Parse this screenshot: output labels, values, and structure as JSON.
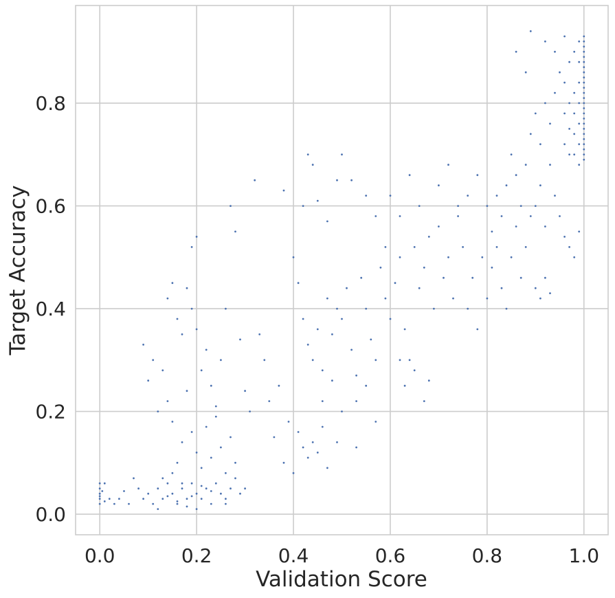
{
  "chart_data": {
    "type": "scatter",
    "style": "seaborn whitegrid",
    "xlabel": "Validation Score",
    "ylabel": "Target Accuracy",
    "xlim": [
      -0.05,
      1.05
    ],
    "ylim": [
      -0.04,
      0.99
    ],
    "xticks": [
      "0.0",
      "0.2",
      "0.4",
      "0.6",
      "0.8",
      "1.0"
    ],
    "yticks": [
      "0.0",
      "0.2",
      "0.4",
      "0.6",
      "0.8"
    ],
    "grid": true,
    "colors": {
      "marker": "#4c72b0",
      "grid": "#cccccc",
      "spine": "#cccccc"
    },
    "series": [
      {
        "points": [
          [
            0.0,
            0.06
          ],
          [
            0.0,
            0.05
          ],
          [
            0.0,
            0.04
          ],
          [
            0.0,
            0.03
          ],
          [
            0.0,
            0.02
          ],
          [
            0.0,
            0.035
          ],
          [
            0.005,
            0.045
          ],
          [
            0.01,
            0.06
          ],
          [
            0.01,
            0.025
          ],
          [
            0.02,
            0.03
          ],
          [
            0.03,
            0.02
          ],
          [
            0.04,
            0.03
          ],
          [
            0.05,
            0.045
          ],
          [
            0.06,
            0.02
          ],
          [
            0.07,
            0.07
          ],
          [
            0.08,
            0.05
          ],
          [
            0.09,
            0.03
          ],
          [
            0.1,
            0.04
          ],
          [
            0.11,
            0.02
          ],
          [
            0.12,
            0.05
          ],
          [
            0.13,
            0.03
          ],
          [
            0.14,
            0.06
          ],
          [
            0.15,
            0.04
          ],
          [
            0.16,
            0.02
          ],
          [
            0.17,
            0.05
          ],
          [
            0.18,
            0.03
          ],
          [
            0.19,
            0.06
          ],
          [
            0.2,
            0.04
          ],
          [
            0.21,
            0.03
          ],
          [
            0.22,
            0.05
          ],
          [
            0.23,
            0.02
          ],
          [
            0.24,
            0.06
          ],
          [
            0.25,
            0.04
          ],
          [
            0.26,
            0.03
          ],
          [
            0.27,
            0.05
          ],
          [
            0.28,
            0.07
          ],
          [
            0.15,
            0.08
          ],
          [
            0.17,
            0.06
          ],
          [
            0.19,
            0.035
          ],
          [
            0.21,
            0.055
          ],
          [
            0.23,
            0.045
          ],
          [
            0.16,
            0.025
          ],
          [
            0.18,
            0.015
          ],
          [
            0.2,
            0.01
          ],
          [
            0.12,
            0.01
          ],
          [
            0.14,
            0.035
          ],
          [
            0.26,
            0.02
          ],
          [
            0.29,
            0.04
          ],
          [
            0.3,
            0.05
          ],
          [
            0.13,
            0.07
          ],
          [
            0.09,
            0.33
          ],
          [
            0.1,
            0.26
          ],
          [
            0.11,
            0.3
          ],
          [
            0.12,
            0.2
          ],
          [
            0.13,
            0.28
          ],
          [
            0.14,
            0.22
          ],
          [
            0.15,
            0.18
          ],
          [
            0.16,
            0.1
          ],
          [
            0.17,
            0.14
          ],
          [
            0.18,
            0.24
          ],
          [
            0.19,
            0.16
          ],
          [
            0.2,
            0.12
          ],
          [
            0.21,
            0.09
          ],
          [
            0.22,
            0.17
          ],
          [
            0.23,
            0.11
          ],
          [
            0.24,
            0.19
          ],
          [
            0.25,
            0.13
          ],
          [
            0.26,
            0.08
          ],
          [
            0.27,
            0.15
          ],
          [
            0.28,
            0.1
          ],
          [
            0.14,
            0.42
          ],
          [
            0.15,
            0.45
          ],
          [
            0.16,
            0.38
          ],
          [
            0.17,
            0.35
          ],
          [
            0.18,
            0.44
          ],
          [
            0.19,
            0.4
          ],
          [
            0.2,
            0.36
          ],
          [
            0.2,
            0.54
          ],
          [
            0.19,
            0.52
          ],
          [
            0.21,
            0.28
          ],
          [
            0.22,
            0.32
          ],
          [
            0.23,
            0.25
          ],
          [
            0.24,
            0.21
          ],
          [
            0.25,
            0.3
          ],
          [
            0.26,
            0.4
          ],
          [
            0.27,
            0.6
          ],
          [
            0.28,
            0.55
          ],
          [
            0.29,
            0.34
          ],
          [
            0.3,
            0.24
          ],
          [
            0.31,
            0.2
          ],
          [
            0.32,
            0.65
          ],
          [
            0.33,
            0.35
          ],
          [
            0.34,
            0.3
          ],
          [
            0.35,
            0.22
          ],
          [
            0.36,
            0.15
          ],
          [
            0.37,
            0.25
          ],
          [
            0.38,
            0.1
          ],
          [
            0.39,
            0.18
          ],
          [
            0.4,
            0.08
          ],
          [
            0.41,
            0.16
          ],
          [
            0.42,
            0.13
          ],
          [
            0.43,
            0.11
          ],
          [
            0.44,
            0.14
          ],
          [
            0.45,
            0.12
          ],
          [
            0.46,
            0.17
          ],
          [
            0.47,
            0.09
          ],
          [
            0.49,
            0.14
          ],
          [
            0.53,
            0.13
          ],
          [
            0.38,
            0.63
          ],
          [
            0.42,
            0.6
          ],
          [
            0.43,
            0.7
          ],
          [
            0.44,
            0.68
          ],
          [
            0.45,
            0.61
          ],
          [
            0.47,
            0.57
          ],
          [
            0.49,
            0.65
          ],
          [
            0.5,
            0.7
          ],
          [
            0.52,
            0.65
          ],
          [
            0.55,
            0.62
          ],
          [
            0.57,
            0.58
          ],
          [
            0.59,
            0.52
          ],
          [
            0.4,
            0.5
          ],
          [
            0.41,
            0.45
          ],
          [
            0.42,
            0.38
          ],
          [
            0.43,
            0.33
          ],
          [
            0.44,
            0.3
          ],
          [
            0.45,
            0.36
          ],
          [
            0.46,
            0.28
          ],
          [
            0.47,
            0.42
          ],
          [
            0.48,
            0.35
          ],
          [
            0.49,
            0.4
          ],
          [
            0.5,
            0.38
          ],
          [
            0.51,
            0.44
          ],
          [
            0.52,
            0.32
          ],
          [
            0.53,
            0.27
          ],
          [
            0.54,
            0.46
          ],
          [
            0.55,
            0.4
          ],
          [
            0.56,
            0.34
          ],
          [
            0.57,
            0.3
          ],
          [
            0.58,
            0.48
          ],
          [
            0.59,
            0.42
          ],
          [
            0.6,
            0.38
          ],
          [
            0.61,
            0.45
          ],
          [
            0.62,
            0.5
          ],
          [
            0.63,
            0.36
          ],
          [
            0.64,
            0.3
          ],
          [
            0.65,
            0.52
          ],
          [
            0.66,
            0.44
          ],
          [
            0.67,
            0.48
          ],
          [
            0.68,
            0.26
          ],
          [
            0.69,
            0.4
          ],
          [
            0.7,
            0.56
          ],
          [
            0.71,
            0.46
          ],
          [
            0.72,
            0.5
          ],
          [
            0.73,
            0.42
          ],
          [
            0.74,
            0.6
          ],
          [
            0.75,
            0.52
          ],
          [
            0.76,
            0.4
          ],
          [
            0.77,
            0.46
          ],
          [
            0.78,
            0.36
          ],
          [
            0.79,
            0.5
          ],
          [
            0.6,
            0.62
          ],
          [
            0.62,
            0.58
          ],
          [
            0.64,
            0.66
          ],
          [
            0.66,
            0.6
          ],
          [
            0.68,
            0.54
          ],
          [
            0.7,
            0.64
          ],
          [
            0.72,
            0.68
          ],
          [
            0.74,
            0.58
          ],
          [
            0.76,
            0.62
          ],
          [
            0.78,
            0.66
          ],
          [
            0.62,
            0.3
          ],
          [
            0.63,
            0.25
          ],
          [
            0.65,
            0.28
          ],
          [
            0.67,
            0.22
          ],
          [
            0.55,
            0.25
          ],
          [
            0.53,
            0.22
          ],
          [
            0.5,
            0.2
          ],
          [
            0.48,
            0.26
          ],
          [
            0.46,
            0.22
          ],
          [
            0.57,
            0.18
          ],
          [
            0.8,
            0.6
          ],
          [
            0.81,
            0.55
          ],
          [
            0.82,
            0.62
          ],
          [
            0.83,
            0.58
          ],
          [
            0.84,
            0.64
          ],
          [
            0.85,
            0.7
          ],
          [
            0.86,
            0.66
          ],
          [
            0.87,
            0.6
          ],
          [
            0.88,
            0.68
          ],
          [
            0.89,
            0.74
          ],
          [
            0.8,
            0.42
          ],
          [
            0.81,
            0.48
          ],
          [
            0.82,
            0.52
          ],
          [
            0.83,
            0.44
          ],
          [
            0.84,
            0.4
          ],
          [
            0.85,
            0.5
          ],
          [
            0.86,
            0.56
          ],
          [
            0.87,
            0.46
          ],
          [
            0.88,
            0.52
          ],
          [
            0.89,
            0.58
          ],
          [
            0.9,
            0.78
          ],
          [
            0.91,
            0.72
          ],
          [
            0.92,
            0.8
          ],
          [
            0.93,
            0.76
          ],
          [
            0.94,
            0.82
          ],
          [
            0.95,
            0.86
          ],
          [
            0.96,
            0.84
          ],
          [
            0.97,
            0.88
          ],
          [
            0.98,
            0.9
          ],
          [
            0.99,
            0.92
          ],
          [
            0.9,
            0.6
          ],
          [
            0.91,
            0.64
          ],
          [
            0.92,
            0.56
          ],
          [
            0.93,
            0.68
          ],
          [
            0.94,
            0.62
          ],
          [
            0.95,
            0.58
          ],
          [
            0.96,
            0.54
          ],
          [
            0.97,
            0.52
          ],
          [
            0.98,
            0.5
          ],
          [
            0.99,
            0.55
          ],
          [
            0.9,
            0.44
          ],
          [
            0.91,
            0.42
          ],
          [
            0.92,
            0.46
          ],
          [
            0.93,
            0.43
          ],
          [
            0.86,
            0.9
          ],
          [
            0.88,
            0.86
          ],
          [
            0.89,
            0.94
          ],
          [
            0.92,
            0.92
          ],
          [
            0.94,
            0.9
          ],
          [
            0.96,
            0.93
          ],
          [
            1.0,
            0.93
          ],
          [
            1.0,
            0.92
          ],
          [
            1.0,
            0.91
          ],
          [
            1.0,
            0.9
          ],
          [
            1.0,
            0.89
          ],
          [
            1.0,
            0.88
          ],
          [
            1.0,
            0.87
          ],
          [
            1.0,
            0.86
          ],
          [
            1.0,
            0.85
          ],
          [
            1.0,
            0.84
          ],
          [
            1.0,
            0.83
          ],
          [
            1.0,
            0.82
          ],
          [
            1.0,
            0.81
          ],
          [
            1.0,
            0.8
          ],
          [
            1.0,
            0.79
          ],
          [
            1.0,
            0.78
          ],
          [
            1.0,
            0.77
          ],
          [
            1.0,
            0.76
          ],
          [
            1.0,
            0.75
          ],
          [
            1.0,
            0.74
          ],
          [
            1.0,
            0.73
          ],
          [
            1.0,
            0.72
          ],
          [
            1.0,
            0.71
          ],
          [
            1.0,
            0.7
          ],
          [
            1.0,
            0.69
          ],
          [
            0.99,
            0.88
          ],
          [
            0.99,
            0.84
          ],
          [
            0.99,
            0.8
          ],
          [
            0.99,
            0.76
          ],
          [
            0.99,
            0.72
          ],
          [
            0.99,
            0.68
          ],
          [
            0.98,
            0.82
          ],
          [
            0.98,
            0.78
          ],
          [
            0.98,
            0.74
          ],
          [
            0.98,
            0.7
          ],
          [
            0.97,
            0.8
          ],
          [
            0.97,
            0.75
          ],
          [
            0.97,
            0.7
          ],
          [
            0.96,
            0.78
          ],
          [
            0.96,
            0.72
          ]
        ]
      }
    ]
  }
}
